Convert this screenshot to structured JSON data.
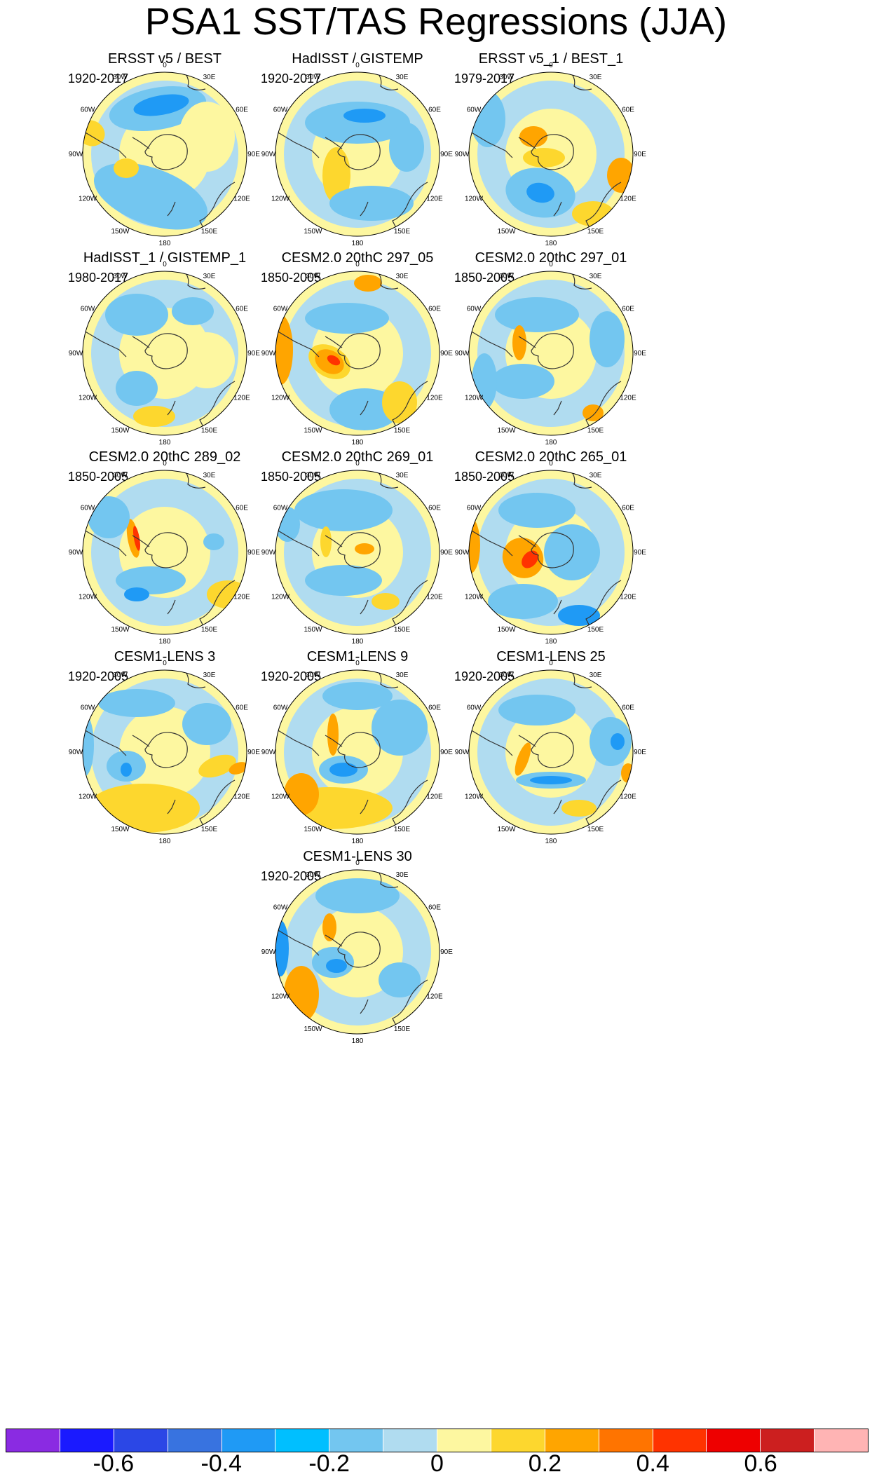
{
  "figure": {
    "title": "PSA1 SST/TAS Regressions (JJA)"
  },
  "panels": [
    {
      "title": "ERSST v5 / BEST",
      "period": "1920-2017"
    },
    {
      "title": "HadISST / GISTEMP",
      "period": "1920-2017"
    },
    {
      "title": "ERSST v5_1 / BEST_1",
      "period": "1979-2017"
    },
    {
      "title": "HadISST_1 / GISTEMP_1",
      "period": "1980-2017"
    },
    {
      "title": "CESM2.0 20thC 297_05",
      "period": "1850-2005"
    },
    {
      "title": "CESM2.0 20thC 297_01",
      "period": "1850-2005"
    },
    {
      "title": "CESM2.0 20thC 289_02",
      "period": "1850-2005"
    },
    {
      "title": "CESM2.0 20thC 269_01",
      "period": "1850-2005"
    },
    {
      "title": "CESM2.0 20thC 265_01",
      "period": "1850-2005"
    },
    {
      "title": "CESM1-LENS 3",
      "period": "1920-2005"
    },
    {
      "title": "CESM1-LENS 9",
      "period": "1920-2005"
    },
    {
      "title": "CESM1-LENS 25",
      "period": "1920-2005"
    },
    {
      "title": "CESM1-LENS 30",
      "period": "1920-2005"
    }
  ],
  "map_labels": {
    "lon_0": "0",
    "lon_30e": "30E",
    "lon_60e": "60E",
    "lon_90e": "90E",
    "lon_120e": "120E",
    "lon_150e": "150E",
    "lon_180": "180",
    "lon_150w": "150W",
    "lon_120w": "120W",
    "lon_90w": "90W",
    "lon_60w": "60W",
    "lon_30w": "30W"
  },
  "colorbar": {
    "colors": [
      "#8a2be2",
      "#1a1aff",
      "#2b47e6",
      "#3873e0",
      "#1f9af5",
      "#00bfff",
      "#73c6f0",
      "#b0dcf0",
      "#fdf7a0",
      "#fdd72e",
      "#ffa500",
      "#ff7400",
      "#ff3300",
      "#ee0000",
      "#cc1f1f",
      "#ffb4b4"
    ],
    "tick_values": [
      -0.6,
      -0.4,
      -0.2,
      0,
      0.2,
      0.4,
      0.6
    ],
    "tick_labels": [
      "-0.6",
      "-0.4",
      "-0.2",
      "0",
      "0.2",
      "0.4",
      "0.6"
    ]
  },
  "palette": {
    "neutral_pos": "#fdf7a0",
    "neutral_neg": "#b0dcf0",
    "pos_1": "#fdd72e",
    "pos_2": "#ffa500",
    "pos_3": "#ff3300",
    "neg_1": "#73c6f0",
    "neg_2": "#1f9af5",
    "neg_3": "#1a1aff",
    "land": "#ffffff"
  }
}
